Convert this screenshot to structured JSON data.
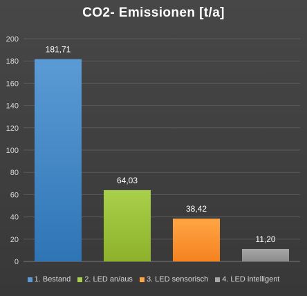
{
  "chart_data": {
    "type": "bar",
    "title": "CO2- Emissionen [t/a]",
    "xlabel": "",
    "ylabel": "",
    "ylim": [
      0,
      200
    ],
    "yticks": [
      0,
      20,
      40,
      60,
      80,
      100,
      120,
      140,
      160,
      180,
      200
    ],
    "ytick_labels": [
      "0",
      "20",
      "40",
      "60",
      "80",
      "100",
      "120",
      "140",
      "160",
      "180",
      "200"
    ],
    "grid": true,
    "legend_position": "bottom",
    "categories": [
      "1. Bestand",
      "2. LED an/aus",
      "3. LED sensorisch",
      "4. LED intelligent"
    ],
    "values": [
      181.71,
      64.03,
      38.42,
      11.2
    ],
    "value_labels": [
      "181,71",
      "64,03",
      "38,42",
      "11,20"
    ],
    "colors": [
      "#2E75B6",
      "#8DB12A",
      "#F58220",
      "#8C8C8C"
    ],
    "colors_light": [
      "#5B9BD5",
      "#A9D04A",
      "#FFA544",
      "#A6A6A6"
    ]
  }
}
